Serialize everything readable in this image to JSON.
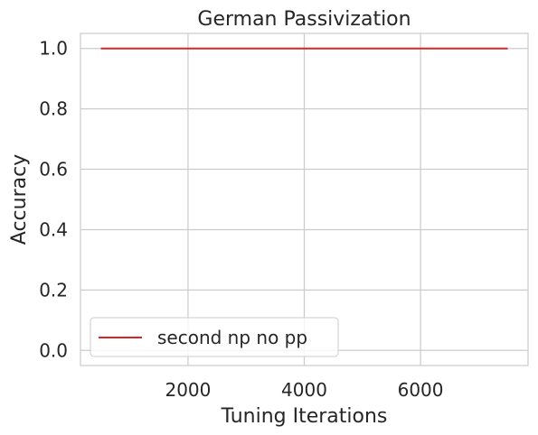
{
  "chart_data": {
    "type": "line",
    "title": "German Passivization",
    "xlabel": "Tuning Iterations",
    "ylabel": "Accuracy",
    "xlim": [
      150,
      7850
    ],
    "ylim": [
      -0.05,
      1.05
    ],
    "xticks": [
      2000,
      4000,
      6000
    ],
    "yticks": [
      0.0,
      0.2,
      0.4,
      0.6,
      0.8,
      1.0
    ],
    "ytick_labels": [
      "0.0",
      "0.2",
      "0.4",
      "0.6",
      "0.8",
      "1.0"
    ],
    "xtick_labels": [
      "2000",
      "4000",
      "6000"
    ],
    "grid": true,
    "legend_position": "lower-left",
    "series": [
      {
        "name": "second np no pp",
        "color": "#d62728",
        "x": [
          500,
          1000,
          1500,
          2000,
          2500,
          3000,
          3500,
          4000,
          4500,
          5000,
          5500,
          6000,
          6500,
          7000,
          7500
        ],
        "y": [
          1.0,
          1.0,
          1.0,
          1.0,
          1.0,
          1.0,
          1.0,
          1.0,
          1.0,
          1.0,
          1.0,
          1.0,
          1.0,
          1.0,
          1.0
        ]
      }
    ]
  }
}
